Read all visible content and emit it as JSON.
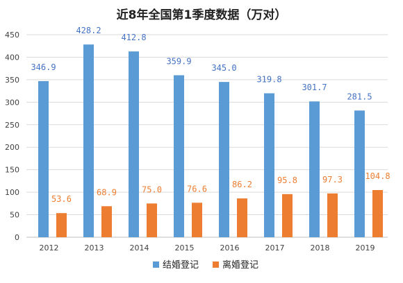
{
  "chart_data": {
    "type": "bar",
    "title": "近8年全国第1季度数据（万对）",
    "categories": [
      "2012",
      "2013",
      "2014",
      "2015",
      "2016",
      "2017",
      "2018",
      "2019"
    ],
    "series": [
      {
        "name": "结婚登记",
        "color": "#5b9bd5",
        "label_color": "#4472c4",
        "values": [
          346.9,
          428.2,
          412.8,
          359.9,
          345.0,
          319.8,
          301.7,
          281.5
        ],
        "labels": [
          "346.9",
          "428.2",
          "412.8",
          "359.9",
          "345.0",
          "319.8",
          "301.7",
          "281.5"
        ]
      },
      {
        "name": "离婚登记",
        "color": "#ed7d31",
        "label_color": "#ed7d31",
        "values": [
          53.6,
          68.9,
          75.0,
          76.6,
          86.2,
          95.8,
          97.3,
          104.8
        ],
        "labels": [
          "53.6",
          "68.9",
          "75.0",
          "76.6",
          "86.2",
          "95.8",
          "97.3",
          "104.8"
        ]
      }
    ],
    "ylim": [
      0,
      450
    ],
    "yticks": [
      "0",
      "50",
      "100",
      "150",
      "200",
      "250",
      "300",
      "350",
      "400",
      "450"
    ],
    "grid": true,
    "legend_position": "bottom"
  }
}
